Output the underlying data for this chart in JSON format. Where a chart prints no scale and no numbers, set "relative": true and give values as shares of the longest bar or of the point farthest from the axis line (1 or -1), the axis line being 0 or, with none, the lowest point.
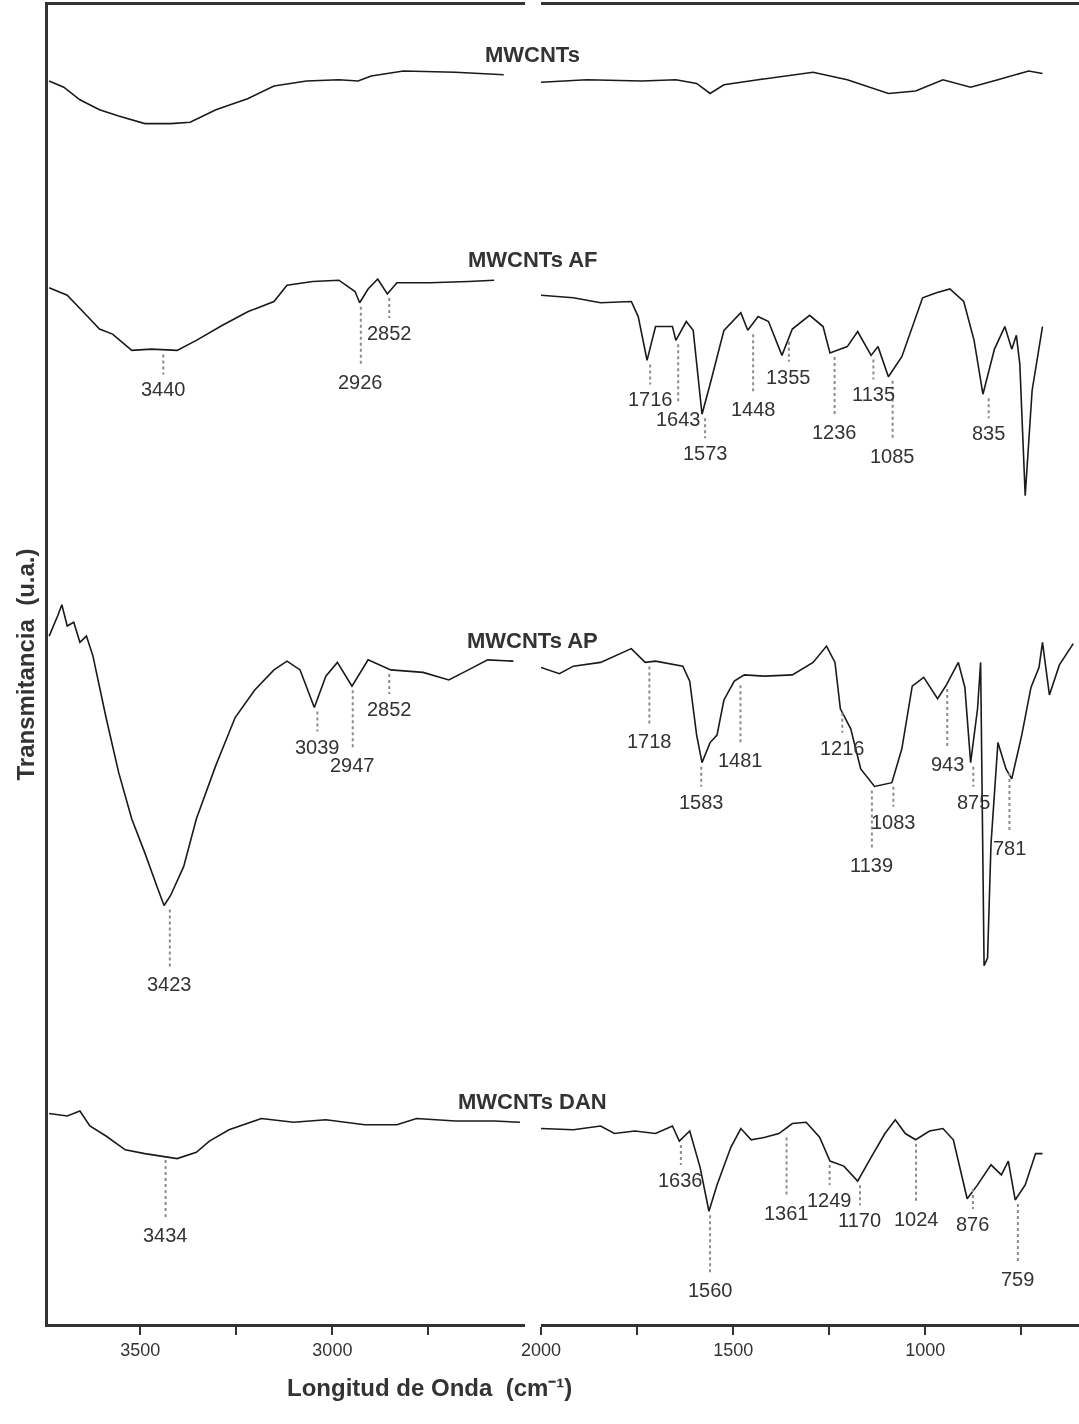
{
  "chart_data": [
    {
      "type": "line",
      "xlabel": "Longitud de Onda  (cm⁻¹)",
      "ylabel": "Transmitancia  (u.a.)",
      "relative": true,
      "legend": false,
      "xlim": [
        3740,
        2500
      ],
      "xticks": [
        3500,
        3000,
        {
          "value": 3250,
          "label": null
        },
        {
          "value": 2750,
          "label": null
        }
      ],
      "series": [
        {
          "name": "MWCNTs",
          "color": "#1a1a1a",
          "x": [
            3737,
            3699,
            3657,
            3606,
            3556,
            3488,
            3421,
            3370,
            3303,
            3219,
            3152,
            3067,
            2983,
            2933,
            2899,
            2815,
            2680,
            2554
          ],
          "values": [
            0.992,
            0.987,
            0.977,
            0.969,
            0.964,
            0.958,
            0.958,
            0.959,
            0.969,
            0.978,
            0.988,
            0.992,
            0.993,
            0.992,
            0.996,
            1.0,
            0.999,
            0.997
          ]
        },
        {
          "name": "MWCNTs AF",
          "color": "#1a1a1a",
          "x": [
            3737,
            3690,
            3640,
            3606,
            3572,
            3522,
            3471,
            3404,
            3354,
            3286,
            3219,
            3152,
            3118,
            3051,
            2983,
            2941,
            2929,
            2907,
            2882,
            2857,
            2832,
            2747,
            2646,
            2579
          ],
          "values": [
            0.827,
            0.821,
            0.805,
            0.794,
            0.79,
            0.777,
            0.778,
            0.777,
            0.785,
            0.797,
            0.808,
            0.816,
            0.829,
            0.832,
            0.833,
            0.824,
            0.815,
            0.826,
            0.834,
            0.822,
            0.831,
            0.831,
            0.832,
            0.833
          ]
        },
        {
          "name": "MWCNTs AP",
          "color": "#1a1a1a",
          "x": [
            3737,
            3715,
            3704,
            3690,
            3673,
            3657,
            3640,
            3623,
            3589,
            3556,
            3522,
            3488,
            3455,
            3438,
            3421,
            3387,
            3354,
            3303,
            3253,
            3202,
            3152,
            3118,
            3084,
            3047,
            3017,
            2987,
            2949,
            2907,
            2848,
            2764,
            2697,
            2646,
            2596,
            2529
          ],
          "values": [
            0.549,
            0.565,
            0.574,
            0.557,
            0.56,
            0.544,
            0.549,
            0.533,
            0.484,
            0.44,
            0.403,
            0.376,
            0.348,
            0.334,
            0.342,
            0.365,
            0.403,
            0.446,
            0.484,
            0.506,
            0.522,
            0.529,
            0.522,
            0.492,
            0.517,
            0.528,
            0.509,
            0.53,
            0.522,
            0.52,
            0.514,
            0.522,
            0.53,
            0.529
          ]
        },
        {
          "name": "MWCNTs DAN",
          "color": "#1a1a1a",
          "x": [
            3737,
            3690,
            3657,
            3631,
            3589,
            3539,
            3488,
            3446,
            3404,
            3354,
            3320,
            3269,
            3185,
            3101,
            3017,
            2916,
            2832,
            2781,
            2680,
            2579,
            2512
          ],
          "values": [
            0.168,
            0.166,
            0.17,
            0.158,
            0.15,
            0.139,
            0.136,
            0.134,
            0.132,
            0.137,
            0.146,
            0.155,
            0.164,
            0.161,
            0.163,
            0.159,
            0.159,
            0.164,
            0.162,
            0.162,
            0.161
          ]
        }
      ],
      "annotations": [
        {
          "text": "3440",
          "x": 3440,
          "y": 0.777
        },
        {
          "text": "2926",
          "x": 2926,
          "y": 0.815
        },
        {
          "text": "2852",
          "x": 2852,
          "y": 0.822
        },
        {
          "text": "3423",
          "x": 3423,
          "y": 0.334
        },
        {
          "text": "3039",
          "x": 3039,
          "y": 0.492
        },
        {
          "text": "2947",
          "x": 2947,
          "y": 0.509
        },
        {
          "text": "2852",
          "x": 2852,
          "y": 0.522
        },
        {
          "text": "3434",
          "x": 3434,
          "y": 0.134
        }
      ]
    },
    {
      "type": "line",
      "relative": true,
      "legend": false,
      "xlim": [
        2000,
        600
      ],
      "xticks": [
        2000,
        1500,
        1000,
        {
          "value": 1750,
          "label": null
        },
        {
          "value": 1250,
          "label": null
        },
        {
          "value": 750,
          "label": null
        }
      ],
      "series": [
        {
          "color": "#1a1a1a",
          "x": [
            2000,
            1881,
            1738,
            1649,
            1595,
            1560,
            1524,
            1435,
            1292,
            1203,
            1096,
            1025,
            954,
            882,
            811,
            731,
            695
          ],
          "values": [
            0.991,
            0.993,
            0.992,
            0.993,
            0.99,
            0.982,
            0.989,
            0.993,
            0.999,
            0.993,
            0.982,
            0.984,
            0.993,
            0.987,
            0.993,
            1.0,
            0.998
          ]
        },
        {
          "color": "#1a1a1a",
          "x": [
            2000,
            1916,
            1845,
            1765,
            1747,
            1724,
            1702,
            1684,
            1658,
            1649,
            1622,
            1604,
            1581,
            1560,
            1524,
            1480,
            1462,
            1435,
            1408,
            1373,
            1346,
            1301,
            1266,
            1248,
            1203,
            1176,
            1141,
            1123,
            1096,
            1061,
            1007,
            971,
            936,
            900,
            873,
            850,
            820,
            793,
            775,
            763,
            754,
            740,
            722,
            695
          ],
          "values": [
            0.821,
            0.819,
            0.815,
            0.816,
            0.804,
            0.769,
            0.796,
            0.796,
            0.796,
            0.785,
            0.8,
            0.793,
            0.726,
            0.75,
            0.793,
            0.807,
            0.793,
            0.804,
            0.8,
            0.773,
            0.794,
            0.805,
            0.796,
            0.775,
            0.78,
            0.792,
            0.773,
            0.78,
            0.756,
            0.772,
            0.819,
            0.823,
            0.826,
            0.816,
            0.785,
            0.742,
            0.778,
            0.796,
            0.778,
            0.789,
            0.766,
            0.661,
            0.745,
            0.796
          ]
        },
        {
          "color": "#1a1a1a",
          "x": [
            2000,
            1952,
            1916,
            1845,
            1765,
            1729,
            1702,
            1631,
            1613,
            1595,
            1581,
            1560,
            1542,
            1524,
            1497,
            1471,
            1417,
            1346,
            1292,
            1257,
            1235,
            1221,
            1194,
            1168,
            1132,
            1087,
            1061,
            1034,
            1004,
            968,
            945,
            914,
            897,
            882,
            864,
            856,
            847,
            838,
            829,
            811,
            790,
            775,
            749,
            725,
            704,
            695,
            677,
            651,
            615
          ],
          "values": [
            0.524,
            0.519,
            0.525,
            0.528,
            0.539,
            0.528,
            0.529,
            0.525,
            0.513,
            0.47,
            0.448,
            0.464,
            0.47,
            0.498,
            0.513,
            0.518,
            0.517,
            0.518,
            0.528,
            0.541,
            0.528,
            0.491,
            0.475,
            0.443,
            0.429,
            0.432,
            0.459,
            0.509,
            0.516,
            0.499,
            0.51,
            0.528,
            0.508,
            0.448,
            0.491,
            0.528,
            0.286,
            0.292,
            0.383,
            0.464,
            0.443,
            0.435,
            0.47,
            0.508,
            0.524,
            0.544,
            0.502,
            0.526,
            0.543
          ]
        },
        {
          "color": "#1a1a1a",
          "x": [
            2000,
            1916,
            1845,
            1809,
            1756,
            1702,
            1658,
            1640,
            1613,
            1586,
            1563,
            1542,
            1506,
            1480,
            1453,
            1417,
            1381,
            1346,
            1310,
            1275,
            1248,
            1212,
            1176,
            1141,
            1105,
            1078,
            1052,
            1025,
            989,
            954,
            927,
            891,
            864,
            829,
            802,
            784,
            766,
            740,
            713,
            695
          ],
          "values": [
            0.156,
            0.155,
            0.158,
            0.152,
            0.154,
            0.152,
            0.158,
            0.146,
            0.154,
            0.125,
            0.09,
            0.111,
            0.141,
            0.156,
            0.147,
            0.149,
            0.152,
            0.16,
            0.161,
            0.149,
            0.13,
            0.126,
            0.114,
            0.133,
            0.152,
            0.163,
            0.152,
            0.147,
            0.154,
            0.156,
            0.147,
            0.1,
            0.111,
            0.127,
            0.119,
            0.13,
            0.099,
            0.111,
            0.136,
            0.136
          ]
        }
      ],
      "annotations": [
        {
          "text": "1716",
          "x": 1716,
          "y": 0.769
        },
        {
          "text": "1643",
          "x": 1643,
          "y": 0.785
        },
        {
          "text": "1573",
          "x": 1573,
          "y": 0.726
        },
        {
          "text": "1448",
          "x": 1448,
          "y": 0.793
        },
        {
          "text": "1355",
          "x": 1355,
          "y": 0.787
        },
        {
          "text": "1236",
          "x": 1236,
          "y": 0.775
        },
        {
          "text": "1135",
          "x": 1135,
          "y": 0.773
        },
        {
          "text": "1085",
          "x": 1085,
          "y": 0.756
        },
        {
          "text": "835",
          "x": 835,
          "y": 0.742
        },
        {
          "text": "1718",
          "x": 1718,
          "y": 0.528
        },
        {
          "text": "1583",
          "x": 1583,
          "y": 0.448
        },
        {
          "text": "1481",
          "x": 1481,
          "y": 0.513
        },
        {
          "text": "1216",
          "x": 1216,
          "y": 0.491
        },
        {
          "text": "1139",
          "x": 1139,
          "y": 0.429
        },
        {
          "text": "1083",
          "x": 1083,
          "y": 0.432
        },
        {
          "text": "943",
          "x": 943,
          "y": 0.51
        },
        {
          "text": "875",
          "x": 875,
          "y": 0.448
        },
        {
          "text": "781",
          "x": 781,
          "y": 0.443
        },
        {
          "text": "1636",
          "x": 1636,
          "y": 0.146
        },
        {
          "text": "1560",
          "x": 1560,
          "y": 0.09
        },
        {
          "text": "1249",
          "x": 1249,
          "y": 0.13
        },
        {
          "text": "1361",
          "x": 1361,
          "y": 0.152
        },
        {
          "text": "1170",
          "x": 1170,
          "y": 0.114
        },
        {
          "text": "1024",
          "x": 1024,
          "y": 0.147
        },
        {
          "text": "876",
          "x": 876,
          "y": 0.111
        },
        {
          "text": "759",
          "x": 759,
          "y": 0.099
        }
      ]
    }
  ]
}
